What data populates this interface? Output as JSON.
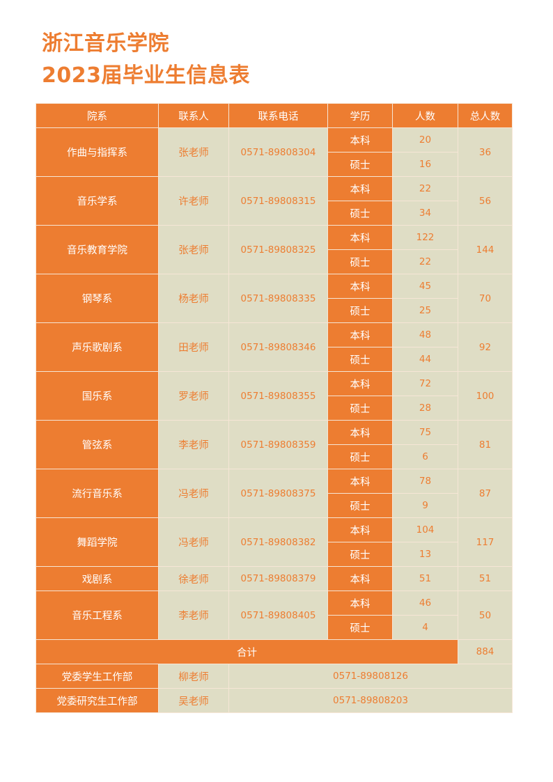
{
  "title": {
    "line1": "浙江音乐学院",
    "line2": "2023届毕业生信息表"
  },
  "colors": {
    "accent": "#ED7D31",
    "cell_bg": "#DFDDC5"
  },
  "table": {
    "headers": [
      "院系",
      "联系人",
      "联系电话",
      "学历",
      "人数",
      "总人数"
    ],
    "rows": [
      {
        "dept": "作曲与指挥系",
        "contact": "张老师",
        "phone": "0571-89808304",
        "levels": [
          {
            "level": "本科",
            "count": "20"
          },
          {
            "level": "硕士",
            "count": "16"
          }
        ],
        "total": "36"
      },
      {
        "dept": "音乐学系",
        "contact": "许老师",
        "phone": "0571-89808315",
        "levels": [
          {
            "level": "本科",
            "count": "22"
          },
          {
            "level": "硕士",
            "count": "34"
          }
        ],
        "total": "56"
      },
      {
        "dept": "音乐教育学院",
        "contact": "张老师",
        "phone": "0571-89808325",
        "levels": [
          {
            "level": "本科",
            "count": "122"
          },
          {
            "level": "硕士",
            "count": "22"
          }
        ],
        "total": "144"
      },
      {
        "dept": "钢琴系",
        "contact": "杨老师",
        "phone": "0571-89808335",
        "levels": [
          {
            "level": "本科",
            "count": "45"
          },
          {
            "level": "硕士",
            "count": "25"
          }
        ],
        "total": "70"
      },
      {
        "dept": "声乐歌剧系",
        "contact": "田老师",
        "phone": "0571-89808346",
        "levels": [
          {
            "level": "本科",
            "count": "48"
          },
          {
            "level": "硕士",
            "count": "44"
          }
        ],
        "total": "92"
      },
      {
        "dept": "国乐系",
        "contact": "罗老师",
        "phone": "0571-89808355",
        "levels": [
          {
            "level": "本科",
            "count": "72"
          },
          {
            "level": "硕士",
            "count": "28"
          }
        ],
        "total": "100"
      },
      {
        "dept": "管弦系",
        "contact": "李老师",
        "phone": "0571-89808359",
        "levels": [
          {
            "level": "本科",
            "count": "75"
          },
          {
            "level": "硕士",
            "count": "6"
          }
        ],
        "total": "81"
      },
      {
        "dept": "流行音乐系",
        "contact": "冯老师",
        "phone": "0571-89808375",
        "levels": [
          {
            "level": "本科",
            "count": "78"
          },
          {
            "level": "硕士",
            "count": "9"
          }
        ],
        "total": "87"
      },
      {
        "dept": "舞蹈学院",
        "contact": "冯老师",
        "phone": "0571-89808382",
        "levels": [
          {
            "level": "本科",
            "count": "104"
          },
          {
            "level": "硕士",
            "count": "13"
          }
        ],
        "total": "117"
      },
      {
        "dept": "戏剧系",
        "contact": "徐老师",
        "phone": "0571-89808379",
        "levels": [
          {
            "level": "本科",
            "count": "51"
          }
        ],
        "total": "51"
      },
      {
        "dept": "音乐工程系",
        "contact": "李老师",
        "phone": "0571-89808405",
        "levels": [
          {
            "level": "本科",
            "count": "46"
          },
          {
            "level": "硕士",
            "count": "4"
          }
        ],
        "total": "50"
      }
    ],
    "sum": {
      "label": "合计",
      "value": "884"
    },
    "offices": [
      {
        "name": "党委学生工作部",
        "contact": "柳老师",
        "phone": "0571-89808126"
      },
      {
        "name": "党委研究生工作部",
        "contact": "吴老师",
        "phone": "0571-89808203"
      }
    ]
  }
}
